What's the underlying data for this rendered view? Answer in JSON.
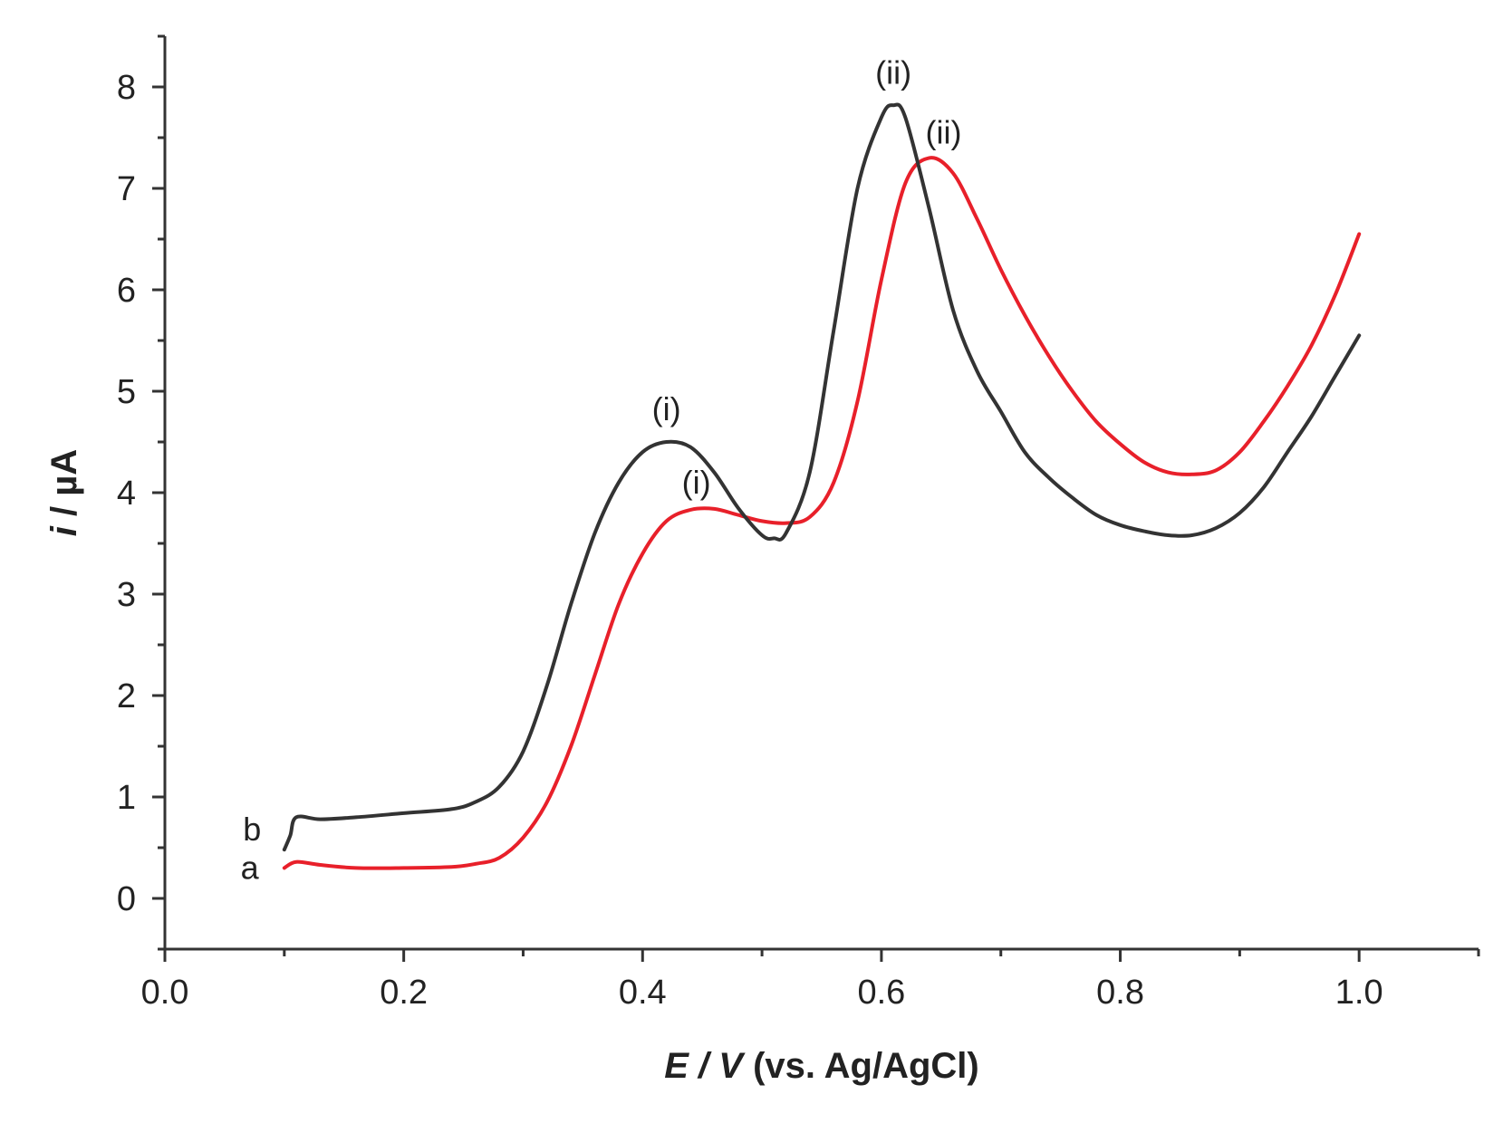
{
  "chart_data": {
    "type": "line",
    "xlabel_italic": "E / V",
    "xlabel_rest": " (vs. Ag/AgCl)",
    "ylabel_italic": "i",
    "ylabel_rest": " / µA",
    "xlim": [
      0.0,
      1.1
    ],
    "ylim": [
      -0.5,
      8.5
    ],
    "x_ticks": [
      {
        "value": 0.0,
        "label": "0.0"
      },
      {
        "value": 0.2,
        "label": "0.2"
      },
      {
        "value": 0.4,
        "label": "0.4"
      },
      {
        "value": 0.6,
        "label": "0.6"
      },
      {
        "value": 0.8,
        "label": "0.8"
      },
      {
        "value": 1.0,
        "label": "1.0"
      }
    ],
    "x_minor_ticks": [
      0.1,
      0.3,
      0.5,
      0.7,
      0.9,
      1.1
    ],
    "y_ticks": [
      {
        "value": 0,
        "label": "0"
      },
      {
        "value": 1,
        "label": "1"
      },
      {
        "value": 2,
        "label": "2"
      },
      {
        "value": 3,
        "label": "3"
      },
      {
        "value": 4,
        "label": "4"
      },
      {
        "value": 5,
        "label": "5"
      },
      {
        "value": 6,
        "label": "6"
      },
      {
        "value": 7,
        "label": "7"
      },
      {
        "value": 8,
        "label": "8"
      }
    ],
    "y_minor_ticks": [
      -0.5,
      0.5,
      1.5,
      2.5,
      3.5,
      4.5,
      5.5,
      6.5,
      7.5,
      8.5
    ],
    "grid": false,
    "series": [
      {
        "name": "a",
        "color": "#e8202a",
        "x": [
          0.1,
          0.11,
          0.13,
          0.16,
          0.2,
          0.24,
          0.26,
          0.28,
          0.3,
          0.32,
          0.34,
          0.36,
          0.38,
          0.4,
          0.42,
          0.44,
          0.46,
          0.48,
          0.5,
          0.52,
          0.54,
          0.56,
          0.58,
          0.6,
          0.62,
          0.64,
          0.66,
          0.68,
          0.7,
          0.72,
          0.74,
          0.76,
          0.78,
          0.8,
          0.82,
          0.84,
          0.86,
          0.88,
          0.9,
          0.92,
          0.94,
          0.96,
          0.98,
          1.0
        ],
        "y": [
          0.3,
          0.36,
          0.33,
          0.3,
          0.3,
          0.31,
          0.34,
          0.4,
          0.6,
          0.95,
          1.5,
          2.2,
          2.9,
          3.4,
          3.72,
          3.83,
          3.84,
          3.78,
          3.72,
          3.7,
          3.76,
          4.1,
          4.9,
          6.1,
          7.05,
          7.3,
          7.15,
          6.7,
          6.2,
          5.75,
          5.35,
          5.0,
          4.7,
          4.48,
          4.3,
          4.2,
          4.18,
          4.22,
          4.4,
          4.7,
          5.05,
          5.45,
          5.95,
          6.55
        ]
      },
      {
        "name": "b",
        "color": "#333333",
        "x": [
          0.1,
          0.105,
          0.11,
          0.13,
          0.16,
          0.2,
          0.24,
          0.26,
          0.28,
          0.3,
          0.32,
          0.34,
          0.36,
          0.38,
          0.4,
          0.42,
          0.44,
          0.46,
          0.48,
          0.5,
          0.51,
          0.52,
          0.54,
          0.56,
          0.58,
          0.6,
          0.61,
          0.62,
          0.64,
          0.66,
          0.68,
          0.7,
          0.72,
          0.74,
          0.76,
          0.78,
          0.8,
          0.82,
          0.84,
          0.86,
          0.88,
          0.9,
          0.92,
          0.94,
          0.96,
          0.98,
          1.0
        ],
        "y": [
          0.48,
          0.62,
          0.8,
          0.78,
          0.8,
          0.84,
          0.88,
          0.95,
          1.1,
          1.45,
          2.1,
          2.9,
          3.6,
          4.1,
          4.4,
          4.5,
          4.45,
          4.2,
          3.85,
          3.58,
          3.55,
          3.6,
          4.2,
          5.6,
          7.0,
          7.7,
          7.82,
          7.7,
          6.8,
          5.8,
          5.2,
          4.8,
          4.4,
          4.15,
          3.95,
          3.78,
          3.68,
          3.62,
          3.58,
          3.58,
          3.65,
          3.8,
          4.05,
          4.4,
          4.75,
          5.15,
          5.55
        ]
      }
    ],
    "annotations": [
      {
        "text": "(i)",
        "x": 0.42,
        "y": 4.82,
        "series": "b"
      },
      {
        "text": "(i)",
        "x": 0.445,
        "y": 4.1,
        "series": "a"
      },
      {
        "text": "(ii)",
        "x": 0.61,
        "y": 8.14,
        "series": "b"
      },
      {
        "text": "(ii)",
        "x": 0.652,
        "y": 7.55,
        "series": "a"
      },
      {
        "text": "b",
        "x": 0.073,
        "y": 0.68,
        "series": "b"
      },
      {
        "text": "a",
        "x": 0.071,
        "y": 0.3,
        "series": "a"
      }
    ]
  }
}
